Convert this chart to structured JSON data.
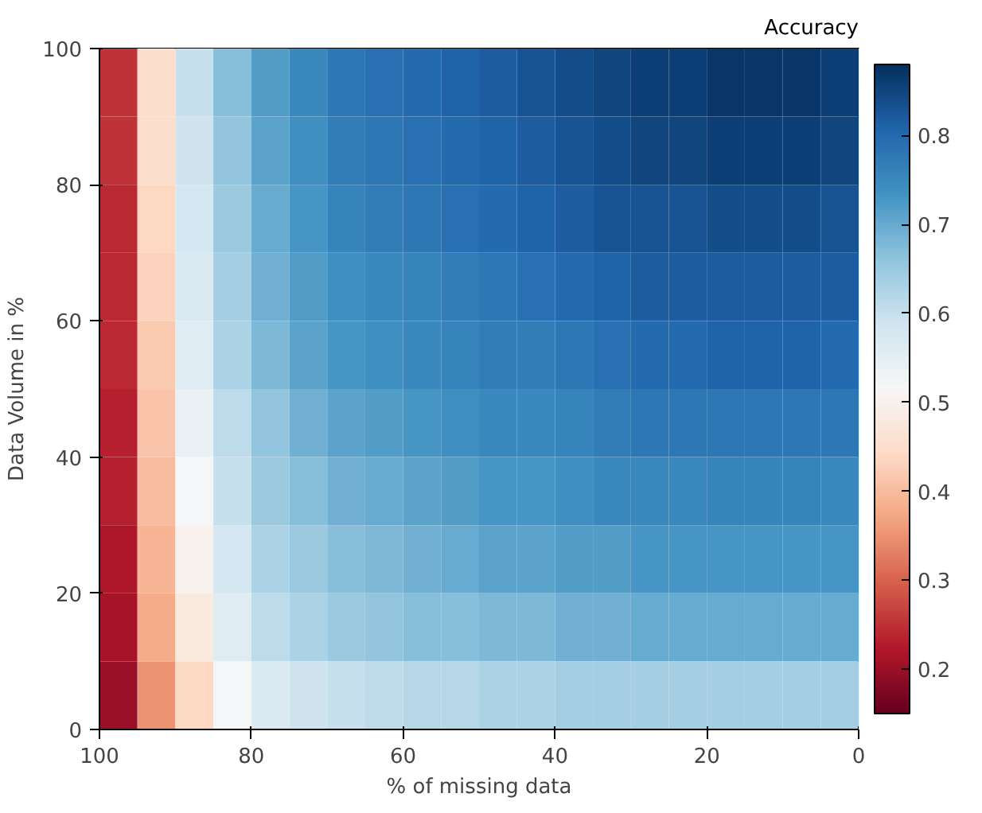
{
  "chart_data": {
    "type": "heatmap",
    "xlabel": "% of missing data",
    "ylabel": "Data Volume in %",
    "clabel": "Accuracy",
    "xlim": [
      100,
      0
    ],
    "xticks": [
      100,
      80,
      60,
      40,
      20,
      0
    ],
    "ylim": [
      0,
      100
    ],
    "yticks": [
      0,
      20,
      40,
      60,
      80,
      100
    ],
    "clim": [
      0.15,
      0.88
    ],
    "cticks": [
      0.2,
      0.3,
      0.4,
      0.5,
      0.6,
      0.7,
      0.8
    ],
    "cells": [
      [
        0.25,
        0.45,
        0.6,
        0.67,
        0.72,
        0.75,
        0.78,
        0.79,
        0.8,
        0.81,
        0.82,
        0.83,
        0.84,
        0.85,
        0.86,
        0.86,
        0.87,
        0.87,
        0.87,
        0.86
      ],
      [
        0.25,
        0.45,
        0.59,
        0.66,
        0.71,
        0.74,
        0.77,
        0.78,
        0.79,
        0.8,
        0.81,
        0.82,
        0.83,
        0.84,
        0.85,
        0.85,
        0.86,
        0.86,
        0.86,
        0.85
      ],
      [
        0.24,
        0.44,
        0.58,
        0.65,
        0.7,
        0.73,
        0.76,
        0.77,
        0.78,
        0.79,
        0.8,
        0.81,
        0.82,
        0.83,
        0.83,
        0.83,
        0.84,
        0.84,
        0.84,
        0.83
      ],
      [
        0.24,
        0.43,
        0.57,
        0.64,
        0.69,
        0.72,
        0.74,
        0.75,
        0.76,
        0.77,
        0.78,
        0.79,
        0.8,
        0.81,
        0.82,
        0.82,
        0.82,
        0.82,
        0.82,
        0.82
      ],
      [
        0.24,
        0.42,
        0.56,
        0.63,
        0.68,
        0.71,
        0.73,
        0.74,
        0.75,
        0.76,
        0.77,
        0.77,
        0.78,
        0.79,
        0.8,
        0.8,
        0.81,
        0.81,
        0.81,
        0.8
      ],
      [
        0.23,
        0.41,
        0.54,
        0.61,
        0.66,
        0.69,
        0.71,
        0.72,
        0.73,
        0.74,
        0.75,
        0.75,
        0.76,
        0.77,
        0.78,
        0.78,
        0.78,
        0.78,
        0.78,
        0.78
      ],
      [
        0.23,
        0.4,
        0.52,
        0.6,
        0.65,
        0.67,
        0.69,
        0.7,
        0.71,
        0.72,
        0.73,
        0.73,
        0.74,
        0.75,
        0.75,
        0.75,
        0.76,
        0.76,
        0.76,
        0.75
      ],
      [
        0.22,
        0.39,
        0.5,
        0.58,
        0.63,
        0.65,
        0.67,
        0.68,
        0.69,
        0.7,
        0.71,
        0.71,
        0.72,
        0.72,
        0.73,
        0.73,
        0.73,
        0.73,
        0.73,
        0.73
      ],
      [
        0.21,
        0.38,
        0.48,
        0.56,
        0.61,
        0.63,
        0.65,
        0.66,
        0.67,
        0.67,
        0.68,
        0.68,
        0.69,
        0.69,
        0.7,
        0.7,
        0.7,
        0.7,
        0.7,
        0.7
      ],
      [
        0.2,
        0.35,
        0.44,
        0.52,
        0.57,
        0.59,
        0.6,
        0.61,
        0.62,
        0.62,
        0.63,
        0.63,
        0.64,
        0.64,
        0.64,
        0.64,
        0.64,
        0.64,
        0.64,
        0.64
      ]
    ]
  }
}
